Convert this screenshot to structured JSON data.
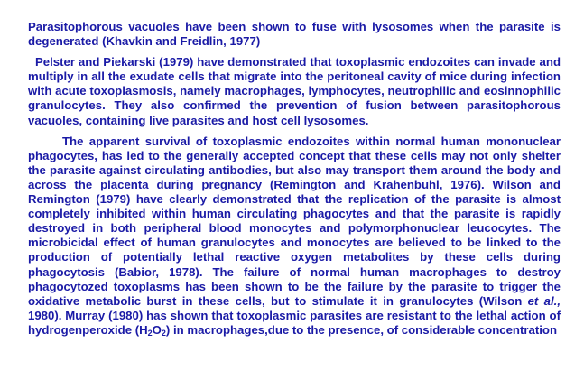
{
  "document": {
    "p1": "Parasitophorous vacuoles have been shown to fuse with lysosomes when the parasite is degenerated (Khavkin and Freidlin, 1977)",
    "p2": "Pelster and Piekarski (1979) have demonstrated that toxoplasmic endozoites can invade and multiply in all the exudate cells that migrate into the peritoneal cavity of mice during infection with acute toxoplasmosis, namely macrophages, lymphocytes, neutrophilic and eosinnophilic granulocytes. They also confirmed the prevention of fusion  between parasitophorous vacuoles, containing live parasites and host cell lysosomes.",
    "p3": {
      "part1": "The apparent survival of toxoplasmic endozoites within normal human mononuclear phagocytes, has led to the generally accepted concept that these cells may not only shelter the parasite against circulating antibodies, but also may transport them around the body and across the placenta during pregnancy (Remington and Krahenbuhl, 1976). Wilson and Remington (1979) have clearly demonstrated that the replication of the parasite is almost completely inhibited within human circulating phagocytes and that the parasite is rapidly destroyed in both peripheral blood monocytes and polymorphonuclear leucocytes. The microbicidal effect of human granulocytes and monocytes are believed to be linked to the production of potentially lethal reactive oxygen metabolites by these cells during phagocytosis (Babior, 1978). The failure of normal human macrophages to destroy phagocytozed toxoplasms has been shown to be the failure by the parasite to trigger the oxidative metabolic burst in these cells, but to stimulate it in granulocytes (Wilson ",
      "et_al": "et al.,",
      "part2": " 1980). Murray (1980) has shown that toxoplasmic parasites are resistant to the lethal action of hydrogenperoxide (H",
      "h_sub": "2",
      "o_letter": "O",
      "o_sub": "2",
      "part3": ") in macrophages,due to the presence, of considerable concentration"
    }
  }
}
